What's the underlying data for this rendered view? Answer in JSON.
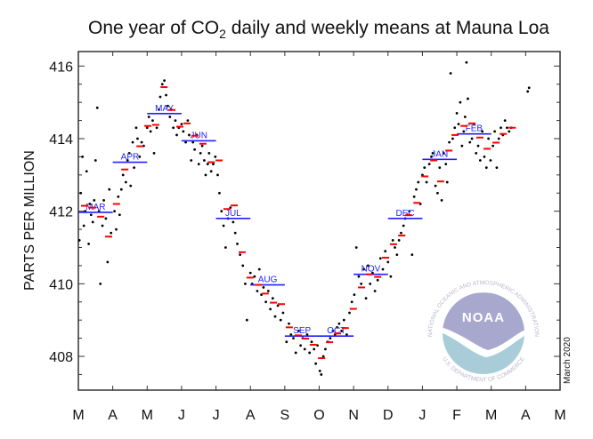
{
  "chart_data": {
    "type": "scatter",
    "title_pre": "One year of CO",
    "title_sub": "2",
    "title_post": " daily and weekly means at Mauna Loa",
    "ylabel": "PARTS PER MILLION",
    "xlabel": "",
    "x_units": "months since March 1, 2019",
    "xlim": [
      0,
      14
    ],
    "ylim": [
      407.07,
      416.4
    ],
    "yticks": [
      408,
      410,
      412,
      414,
      416
    ],
    "yminor_step": 0.5,
    "xtick_labels": [
      "M",
      "A",
      "M",
      "J",
      "J",
      "A",
      "S",
      "O",
      "N",
      "D",
      "J",
      "F",
      "M",
      "A",
      "M"
    ],
    "date_note": "March 2020",
    "colors": {
      "daily": "#000000",
      "weekly": "#ff0000",
      "monthly": "#2020ff",
      "axis": "#333333"
    },
    "monthly_means": [
      {
        "label": "MAR",
        "value": 411.97
      },
      {
        "label": "APR",
        "value": 413.35
      },
      {
        "label": "MAY",
        "value": 414.69
      },
      {
        "label": "JUN",
        "value": 413.94
      },
      {
        "label": "JUL",
        "value": 411.8
      },
      {
        "label": "AUG",
        "value": 409.97
      },
      {
        "label": "SEP",
        "value": 408.56
      },
      {
        "label": "OCT",
        "value": 408.56
      },
      {
        "label": "NOV",
        "value": 410.26
      },
      {
        "label": "DEC",
        "value": 411.8
      },
      {
        "label": "JAN",
        "value": 413.43
      },
      {
        "label": "FEB",
        "value": 414.13
      }
    ],
    "weekly_means": [
      [
        0.18,
        412.15
      ],
      [
        0.41,
        412.1
      ],
      [
        0.65,
        411.85
      ],
      [
        0.88,
        411.3
      ],
      [
        1.11,
        412.2
      ],
      [
        1.35,
        413.15
      ],
      [
        1.79,
        413.79
      ],
      [
        2.02,
        414.35
      ],
      [
        2.25,
        414.38
      ],
      [
        2.49,
        415.42
      ],
      [
        2.72,
        414.79
      ],
      [
        2.95,
        414.33
      ],
      [
        3.16,
        414.42
      ],
      [
        3.39,
        414.08
      ],
      [
        3.62,
        413.86
      ],
      [
        3.86,
        413.35
      ],
      [
        4.09,
        413.4
      ],
      [
        4.32,
        412.06
      ],
      [
        4.53,
        412.16
      ],
      [
        4.76,
        410.87
      ],
      [
        4.99,
        410.17
      ],
      [
        5.23,
        409.97
      ],
      [
        5.43,
        409.73
      ],
      [
        5.67,
        409.48
      ],
      [
        5.9,
        409.44
      ],
      [
        6.13,
        408.8
      ],
      [
        6.39,
        408.58
      ],
      [
        6.6,
        408.49
      ],
      [
        6.83,
        408.32
      ],
      [
        7.07,
        407.95
      ],
      [
        7.3,
        408.39
      ],
      [
        7.53,
        408.63
      ],
      [
        7.76,
        408.78
      ],
      [
        7.99,
        409.31
      ],
      [
        8.23,
        409.9
      ],
      [
        8.46,
        410.26
      ],
      [
        8.7,
        410.19
      ],
      [
        8.93,
        410.72
      ],
      [
        9.16,
        411.09
      ],
      [
        9.4,
        411.33
      ],
      [
        9.6,
        411.89
      ],
      [
        9.84,
        412.23
      ],
      [
        10.07,
        412.96
      ],
      [
        10.33,
        413.4
      ],
      [
        10.53,
        412.82
      ],
      [
        10.77,
        413.67
      ],
      [
        10.95,
        414.1
      ],
      [
        11.21,
        414.35
      ],
      [
        11.44,
        414.42
      ],
      [
        11.67,
        414.03
      ],
      [
        11.88,
        413.72
      ],
      [
        12.14,
        413.89
      ],
      [
        12.35,
        414.13
      ],
      [
        12.61,
        414.3
      ]
    ],
    "daily_values": [
      [
        0.03,
        411.2
      ],
      [
        0.07,
        412.5
      ],
      [
        0.12,
        413.5
      ],
      [
        0.16,
        411.6
      ],
      [
        0.2,
        412.0
      ],
      [
        0.24,
        413.1
      ],
      [
        0.3,
        411.1
      ],
      [
        0.33,
        412.2
      ],
      [
        0.37,
        411.9
      ],
      [
        0.42,
        411.7
      ],
      [
        0.46,
        412.3
      ],
      [
        0.5,
        413.4
      ],
      [
        0.55,
        414.85
      ],
      [
        0.6,
        412.0
      ],
      [
        0.64,
        410.0
      ],
      [
        0.7,
        411.6
      ],
      [
        0.74,
        412.3
      ],
      [
        0.8,
        411.8
      ],
      [
        0.85,
        410.6
      ],
      [
        0.9,
        412.6
      ],
      [
        0.95,
        411.4
      ],
      [
        1.05,
        412.0
      ],
      [
        1.1,
        411.5
      ],
      [
        1.16,
        412.4
      ],
      [
        1.2,
        411.9
      ],
      [
        1.25,
        412.6
      ],
      [
        1.3,
        413.0
      ],
      [
        1.38,
        412.8
      ],
      [
        1.43,
        413.4
      ],
      [
        1.48,
        413.6
      ],
      [
        1.52,
        412.7
      ],
      [
        1.58,
        413.9
      ],
      [
        1.62,
        413.2
      ],
      [
        1.68,
        414.3
      ],
      [
        1.72,
        414.0
      ],
      [
        1.78,
        413.5
      ],
      [
        1.84,
        413.9
      ],
      [
        1.9,
        413.8
      ],
      [
        2.0,
        414.3
      ],
      [
        2.05,
        414.6
      ],
      [
        2.1,
        414.2
      ],
      [
        2.16,
        414.5
      ],
      [
        2.2,
        413.6
      ],
      [
        2.28,
        414.3
      ],
      [
        2.34,
        414.8
      ],
      [
        2.38,
        415.15
      ],
      [
        2.44,
        415.5
      ],
      [
        2.5,
        415.6
      ],
      [
        2.55,
        415.2
      ],
      [
        2.6,
        414.9
      ],
      [
        2.66,
        414.6
      ],
      [
        2.7,
        414.8
      ],
      [
        2.76,
        414.3
      ],
      [
        2.82,
        414.5
      ],
      [
        2.86,
        414.1
      ],
      [
        2.92,
        414.3
      ],
      [
        3.0,
        414.4
      ],
      [
        3.05,
        414.2
      ],
      [
        3.12,
        413.9
      ],
      [
        3.18,
        414.5
      ],
      [
        3.22,
        414.1
      ],
      [
        3.28,
        413.4
      ],
      [
        3.33,
        413.9
      ],
      [
        3.38,
        413.7
      ],
      [
        3.44,
        414.1
      ],
      [
        3.5,
        413.3
      ],
      [
        3.55,
        413.6
      ],
      [
        3.6,
        413.8
      ],
      [
        3.66,
        413.4
      ],
      [
        3.7,
        413.0
      ],
      [
        3.76,
        413.3
      ],
      [
        3.8,
        413.6
      ],
      [
        3.86,
        413.1
      ],
      [
        3.92,
        413.3
      ],
      [
        3.98,
        413.5
      ],
      [
        4.05,
        413.0
      ],
      [
        4.1,
        412.5
      ],
      [
        4.16,
        412.0
      ],
      [
        4.22,
        411.6
      ],
      [
        4.28,
        411.0
      ],
      [
        4.35,
        411.8
      ],
      [
        4.42,
        412.1
      ],
      [
        4.5,
        411.7
      ],
      [
        4.56,
        411.4
      ],
      [
        4.62,
        411.1
      ],
      [
        4.7,
        410.8
      ],
      [
        4.78,
        410.5
      ],
      [
        4.85,
        410.0
      ],
      [
        4.9,
        409.0
      ],
      [
        5.0,
        410.3
      ],
      [
        5.05,
        410.0
      ],
      [
        5.12,
        410.2
      ],
      [
        5.2,
        409.8
      ],
      [
        5.26,
        410.4
      ],
      [
        5.32,
        409.7
      ],
      [
        5.38,
        409.9
      ],
      [
        5.45,
        409.5
      ],
      [
        5.52,
        409.8
      ],
      [
        5.58,
        409.3
      ],
      [
        5.65,
        409.6
      ],
      [
        5.72,
        409.1
      ],
      [
        5.8,
        409.4
      ],
      [
        5.88,
        409.0
      ],
      [
        5.95,
        409.2
      ],
      [
        6.05,
        408.4
      ],
      [
        6.12,
        408.9
      ],
      [
        6.18,
        408.6
      ],
      [
        6.25,
        408.5
      ],
      [
        6.32,
        408.1
      ],
      [
        6.4,
        408.7
      ],
      [
        6.46,
        408.3
      ],
      [
        6.52,
        408.5
      ],
      [
        6.58,
        408.2
      ],
      [
        6.65,
        408.6
      ],
      [
        6.72,
        408.1
      ],
      [
        6.78,
        408.4
      ],
      [
        6.85,
        408.2
      ],
      [
        6.9,
        407.8
      ],
      [
        6.95,
        408.3
      ],
      [
        7.02,
        407.6
      ],
      [
        7.06,
        407.5
      ],
      [
        7.12,
        408.0
      ],
      [
        7.18,
        408.2
      ],
      [
        7.25,
        408.4
      ],
      [
        7.32,
        408.5
      ],
      [
        7.4,
        408.7
      ],
      [
        7.46,
        408.6
      ],
      [
        7.52,
        408.8
      ],
      [
        7.58,
        408.9
      ],
      [
        7.65,
        408.7
      ],
      [
        7.72,
        409.0
      ],
      [
        7.8,
        408.6
      ],
      [
        7.88,
        409.2
      ],
      [
        7.95,
        409.5
      ],
      [
        8.02,
        409.7
      ],
      [
        8.08,
        411.0
      ],
      [
        8.15,
        410.2
      ],
      [
        8.22,
        410.0
      ],
      [
        8.3,
        410.4
      ],
      [
        8.36,
        409.6
      ],
      [
        8.42,
        410.5
      ],
      [
        8.48,
        410.0
      ],
      [
        8.55,
        410.3
      ],
      [
        8.62,
        409.8
      ],
      [
        8.7,
        410.1
      ],
      [
        8.78,
        410.7
      ],
      [
        8.85,
        410.4
      ],
      [
        8.92,
        410.9
      ],
      [
        9.0,
        410.6
      ],
      [
        9.08,
        410.2
      ],
      [
        9.14,
        411.2
      ],
      [
        9.2,
        411.0
      ],
      [
        9.26,
        410.8
      ],
      [
        9.32,
        411.2
      ],
      [
        9.38,
        411.4
      ],
      [
        9.45,
        411.6
      ],
      [
        9.5,
        411.8
      ],
      [
        9.56,
        411.9
      ],
      [
        9.62,
        412.0
      ],
      [
        9.7,
        410.8
      ],
      [
        9.76,
        412.4
      ],
      [
        9.82,
        412.6
      ],
      [
        9.88,
        412.8
      ],
      [
        9.94,
        412.2
      ],
      [
        10.0,
        413.0
      ],
      [
        10.06,
        413.2
      ],
      [
        10.12,
        412.8
      ],
      [
        10.2,
        413.3
      ],
      [
        10.26,
        413.5
      ],
      [
        10.3,
        413.6
      ],
      [
        10.38,
        412.7
      ],
      [
        10.44,
        412.5
      ],
      [
        10.5,
        413.2
      ],
      [
        10.56,
        412.3
      ],
      [
        10.62,
        413.6
      ],
      [
        10.68,
        413.3
      ],
      [
        10.72,
        412.8
      ],
      [
        10.78,
        413.9
      ],
      [
        10.82,
        415.8
      ],
      [
        10.88,
        414.0
      ],
      [
        10.94,
        414.3
      ],
      [
        11.0,
        414.7
      ],
      [
        11.05,
        414.4
      ],
      [
        11.1,
        415.0
      ],
      [
        11.15,
        413.8
      ],
      [
        11.2,
        414.2
      ],
      [
        11.24,
        414.6
      ],
      [
        11.28,
        416.1
      ],
      [
        11.32,
        415.1
      ],
      [
        11.38,
        413.9
      ],
      [
        11.44,
        414.0
      ],
      [
        11.5,
        414.4
      ],
      [
        11.56,
        413.6
      ],
      [
        11.62,
        413.8
      ],
      [
        11.68,
        413.4
      ],
      [
        11.74,
        414.2
      ],
      [
        11.8,
        413.5
      ],
      [
        11.86,
        413.2
      ],
      [
        11.92,
        414.0
      ],
      [
        11.98,
        413.4
      ],
      [
        12.05,
        413.8
      ],
      [
        12.1,
        414.2
      ],
      [
        12.16,
        413.2
      ],
      [
        12.22,
        414.0
      ],
      [
        12.28,
        414.3
      ],
      [
        12.34,
        414.1
      ],
      [
        12.4,
        414.5
      ],
      [
        12.46,
        414.3
      ],
      [
        12.52,
        414.2
      ],
      [
        12.58,
        414.3
      ],
      [
        13.06,
        415.3
      ],
      [
        13.1,
        415.4
      ]
    ]
  },
  "logo": {
    "center_text": "NOAA",
    "ring_top": "NATIONAL OCEANIC AND ATMOSPHERIC ADMINISTRATION",
    "ring_bottom": "U.S. DEPARTMENT OF COMMERCE"
  }
}
